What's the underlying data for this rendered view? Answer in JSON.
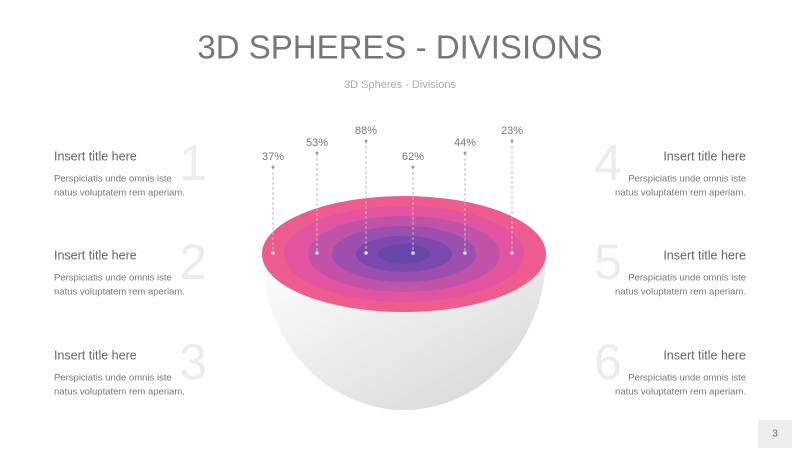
{
  "header": {
    "title": "3D SPHERES - DIVISIONS",
    "subtitle": "3D Spheres - Divisions"
  },
  "percent_labels": [
    "37%",
    "53%",
    "88%",
    "62%",
    "44%",
    "23%"
  ],
  "items": [
    {
      "number": "1",
      "title": "Insert title here",
      "lines": [
        "Perspiciatis unde omnis iste",
        "natus voluptatem rem aperiam."
      ]
    },
    {
      "number": "2",
      "title": "Insert title here",
      "lines": [
        "Perspiciatis unde omnis iste",
        "natus voluptatem rem aperiam."
      ]
    },
    {
      "number": "3",
      "title": "Insert title here",
      "lines": [
        "Perspiciatis unde omnis iste",
        "natus voluptatem rem aperiam."
      ]
    },
    {
      "number": "4",
      "title": "Insert title here",
      "lines": [
        "Perspiciatis unde omnis iste",
        "natus voluptatem rem aperiam."
      ]
    },
    {
      "number": "5",
      "title": "Insert title here",
      "lines": [
        "Perspiciatis unde omnis iste",
        "natus voluptatem rem aperiam."
      ]
    },
    {
      "number": "6",
      "title": "Insert title here",
      "lines": [
        "Perspiciatis unde omnis iste",
        "natus voluptatem rem aperiam."
      ]
    }
  ],
  "page_number": "3"
}
